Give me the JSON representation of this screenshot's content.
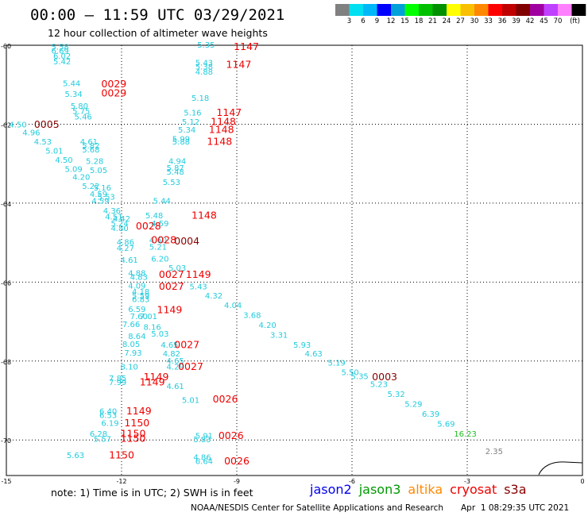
{
  "title": "00:00 – 11:59 UTC 03/29/2021",
  "subtitle": "12 hour collection of altimeter wave heights",
  "colorbar": {
    "colors": [
      "#808080",
      "#00e0f0",
      "#00b8f8",
      "#0000ff",
      "#00a0d8",
      "#00ff00",
      "#00c000",
      "#009000",
      "#ffff00",
      "#f8c000",
      "#ff8800",
      "#ff0000",
      "#c00000",
      "#800000",
      "#a000a0",
      "#c040ff",
      "#ff80ff",
      "#000000"
    ],
    "labels": [
      "3",
      "6",
      "9",
      "12",
      "15",
      "18",
      "21",
      "24",
      "27",
      "30",
      "33",
      "36",
      "39",
      "42",
      "45",
      "70",
      "(ft)"
    ]
  },
  "axes": {
    "y_ticks": [
      "-60",
      "-62",
      "-64",
      "-66",
      "-68",
      "-70"
    ],
    "x_ticks": [
      "-15",
      "-12",
      "-9",
      "-6",
      "-3",
      "0"
    ]
  },
  "colors": {
    "swh": "#22ccdd",
    "jason3_swh": "#22bb22",
    "gray_swh": "#808080",
    "time_cryosat": "#ee0000",
    "time_s3a": "#880000"
  },
  "swh_labels": [
    {
      "text": "5.58",
      "lon": -13.6,
      "lat": -60.05,
      "c": "swh"
    },
    {
      "text": "6.69",
      "lon": -13.6,
      "lat": -60.15,
      "c": "swh"
    },
    {
      "text": "6.02",
      "lon": -13.55,
      "lat": -60.28,
      "c": "swh"
    },
    {
      "text": "5.42",
      "lon": -13.55,
      "lat": -60.42,
      "c": "swh"
    },
    {
      "text": "5.44",
      "lon": -13.3,
      "lat": -60.98,
      "c": "swh"
    },
    {
      "text": "5.34",
      "lon": -13.25,
      "lat": -61.25,
      "c": "swh"
    },
    {
      "text": "5.80",
      "lon": -13.1,
      "lat": -61.55,
      "c": "swh"
    },
    {
      "text": "5.75",
      "lon": -13.05,
      "lat": -61.68,
      "c": "swh"
    },
    {
      "text": "5.46",
      "lon": -13.0,
      "lat": -61.82,
      "c": "swh"
    },
    {
      "text": "4.50",
      "lon": -14.7,
      "lat": -62.02,
      "c": "swh"
    },
    {
      "text": "4.96",
      "lon": -14.35,
      "lat": -62.22,
      "c": "swh"
    },
    {
      "text": "4.53",
      "lon": -14.05,
      "lat": -62.45,
      "c": "swh"
    },
    {
      "text": "4.61",
      "lon": -12.85,
      "lat": -62.45,
      "c": "swh"
    },
    {
      "text": "5.82",
      "lon": -12.8,
      "lat": -62.55,
      "c": "swh"
    },
    {
      "text": "5.68",
      "lon": -12.8,
      "lat": -62.65,
      "c": "swh"
    },
    {
      "text": "5.01",
      "lon": -13.75,
      "lat": -62.68,
      "c": "swh"
    },
    {
      "text": "4.50",
      "lon": -13.5,
      "lat": -62.92,
      "c": "swh"
    },
    {
      "text": "5.28",
      "lon": -12.7,
      "lat": -62.95,
      "c": "swh"
    },
    {
      "text": "5.09",
      "lon": -13.25,
      "lat": -63.15,
      "c": "swh"
    },
    {
      "text": "5.05",
      "lon": -12.6,
      "lat": -63.18,
      "c": "swh"
    },
    {
      "text": "4.20",
      "lon": -13.05,
      "lat": -63.35,
      "c": "swh"
    },
    {
      "text": "5.22",
      "lon": -12.8,
      "lat": -63.58,
      "c": "swh"
    },
    {
      "text": "5.16",
      "lon": -12.5,
      "lat": -63.62,
      "c": "swh"
    },
    {
      "text": "4.59",
      "lon": -12.6,
      "lat": -63.78,
      "c": "swh"
    },
    {
      "text": "5.53",
      "lon": -12.4,
      "lat": -63.85,
      "c": "swh"
    },
    {
      "text": "4.59",
      "lon": -12.55,
      "lat": -63.95,
      "c": "swh"
    },
    {
      "text": "4.36",
      "lon": -12.25,
      "lat": -64.2,
      "c": "swh"
    },
    {
      "text": "4.51",
      "lon": -12.2,
      "lat": -64.35,
      "c": "swh"
    },
    {
      "text": "4.42",
      "lon": -12.0,
      "lat": -64.4,
      "c": "swh"
    },
    {
      "text": "5.24",
      "lon": -12.05,
      "lat": -64.52,
      "c": "swh"
    },
    {
      "text": "4.80",
      "lon": -12.05,
      "lat": -64.65,
      "c": "swh"
    },
    {
      "text": "4.86",
      "lon": -11.9,
      "lat": -65.0,
      "c": "swh"
    },
    {
      "text": "4.27",
      "lon": -11.9,
      "lat": -65.15,
      "c": "swh"
    },
    {
      "text": "4.61",
      "lon": -11.8,
      "lat": -65.45,
      "c": "swh"
    },
    {
      "text": "4.88",
      "lon": -11.6,
      "lat": -65.78,
      "c": "swh"
    },
    {
      "text": "4.83",
      "lon": -11.55,
      "lat": -65.88,
      "c": "swh"
    },
    {
      "text": "4.09",
      "lon": -11.6,
      "lat": -66.1,
      "c": "swh"
    },
    {
      "text": "4.18",
      "lon": -11.5,
      "lat": -66.25,
      "c": "swh"
    },
    {
      "text": "5.59",
      "lon": -11.5,
      "lat": -66.35,
      "c": "swh"
    },
    {
      "text": "6.83",
      "lon": -11.5,
      "lat": -66.45,
      "c": "swh"
    },
    {
      "text": "6.59",
      "lon": -11.6,
      "lat": -66.7,
      "c": "swh"
    },
    {
      "text": "7.60",
      "lon": -11.55,
      "lat": -66.88,
      "c": "swh"
    },
    {
      "text": "7.01",
      "lon": -11.3,
      "lat": -66.88,
      "c": "swh"
    },
    {
      "text": "7.66",
      "lon": -11.75,
      "lat": -67.08,
      "c": "swh"
    },
    {
      "text": "8.16",
      "lon": -11.2,
      "lat": -67.15,
      "c": "swh"
    },
    {
      "text": "8.64",
      "lon": -11.6,
      "lat": -67.38,
      "c": "swh"
    },
    {
      "text": "5.03",
      "lon": -11.0,
      "lat": -67.32,
      "c": "swh"
    },
    {
      "text": "8.05",
      "lon": -11.75,
      "lat": -67.58,
      "c": "swh"
    },
    {
      "text": "4.65",
      "lon": -10.75,
      "lat": -67.6,
      "c": "swh"
    },
    {
      "text": "7.93",
      "lon": -11.7,
      "lat": -67.8,
      "c": "swh"
    },
    {
      "text": "4.82",
      "lon": -10.7,
      "lat": -67.82,
      "c": "swh"
    },
    {
      "text": "4.65",
      "lon": -10.6,
      "lat": -68.0,
      "c": "swh"
    },
    {
      "text": "8.10",
      "lon": -11.8,
      "lat": -68.15,
      "c": "swh"
    },
    {
      "text": "4.29",
      "lon": -10.6,
      "lat": -68.15,
      "c": "swh"
    },
    {
      "text": "7.85",
      "lon": -12.1,
      "lat": -68.45,
      "c": "swh"
    },
    {
      "text": "7.99",
      "lon": -12.1,
      "lat": -68.55,
      "c": "swh"
    },
    {
      "text": "4.61",
      "lon": -10.6,
      "lat": -68.65,
      "c": "swh"
    },
    {
      "text": "5.01",
      "lon": -10.2,
      "lat": -69.0,
      "c": "swh"
    },
    {
      "text": "6.40",
      "lon": -12.35,
      "lat": -69.28,
      "c": "swh"
    },
    {
      "text": "6.53",
      "lon": -12.35,
      "lat": -69.38,
      "c": "swh"
    },
    {
      "text": "6.19",
      "lon": -12.3,
      "lat": -69.58,
      "c": "swh"
    },
    {
      "text": "6.28",
      "lon": -12.6,
      "lat": -69.85,
      "c": "swh"
    },
    {
      "text": "5.57",
      "lon": -12.5,
      "lat": -69.98,
      "c": "swh"
    },
    {
      "text": "5.91",
      "lon": -9.85,
      "lat": -69.9,
      "c": "swh"
    },
    {
      "text": "5.83",
      "lon": -9.9,
      "lat": -70.0,
      "c": "swh"
    },
    {
      "text": "5.63",
      "lon": -13.2,
      "lat": -70.4,
      "c": "swh"
    },
    {
      "text": "4.86",
      "lon": -9.9,
      "lat": -70.45,
      "c": "swh"
    },
    {
      "text": "6.64",
      "lon": -9.85,
      "lat": -70.55,
      "c": "swh"
    },
    {
      "text": "5.35",
      "lon": -9.8,
      "lat": -60.0,
      "c": "swh"
    },
    {
      "text": "5.43",
      "lon": -9.85,
      "lat": -60.45,
      "c": "swh"
    },
    {
      "text": "5.38",
      "lon": -9.85,
      "lat": -60.55,
      "c": "swh"
    },
    {
      "text": "4.88",
      "lon": -9.85,
      "lat": -60.68,
      "c": "swh"
    },
    {
      "text": "5.18",
      "lon": -9.95,
      "lat": -61.35,
      "c": "swh"
    },
    {
      "text": "5.16",
      "lon": -10.15,
      "lat": -61.72,
      "c": "swh"
    },
    {
      "text": "5.12",
      "lon": -10.2,
      "lat": -61.95,
      "c": "swh"
    },
    {
      "text": "5.34",
      "lon": -10.3,
      "lat": -62.15,
      "c": "swh"
    },
    {
      "text": "5.99",
      "lon": -10.45,
      "lat": -62.38,
      "c": "swh"
    },
    {
      "text": "5.88",
      "lon": -10.45,
      "lat": -62.45,
      "c": "swh"
    },
    {
      "text": "4.94",
      "lon": -10.55,
      "lat": -62.95,
      "c": "swh"
    },
    {
      "text": "5.87",
      "lon": -10.6,
      "lat": -63.12,
      "c": "swh"
    },
    {
      "text": "5.48",
      "lon": -10.6,
      "lat": -63.22,
      "c": "swh"
    },
    {
      "text": "5.53",
      "lon": -10.7,
      "lat": -63.48,
      "c": "swh"
    },
    {
      "text": "5.44",
      "lon": -10.95,
      "lat": -63.95,
      "c": "swh"
    },
    {
      "text": "5.48",
      "lon": -11.15,
      "lat": -64.32,
      "c": "swh"
    },
    {
      "text": "4.59",
      "lon": -11.0,
      "lat": -64.52,
      "c": "swh"
    },
    {
      "text": "4.60",
      "lon": -11.05,
      "lat": -64.95,
      "c": "swh"
    },
    {
      "text": "5.21",
      "lon": -11.05,
      "lat": -65.12,
      "c": "swh"
    },
    {
      "text": "6.20",
      "lon": -11.0,
      "lat": -65.42,
      "c": "swh"
    },
    {
      "text": "5.03",
      "lon": -10.55,
      "lat": -65.65,
      "c": "swh"
    },
    {
      "text": "5.43",
      "lon": -10.0,
      "lat": -66.12,
      "c": "swh"
    },
    {
      "text": "4.32",
      "lon": -9.6,
      "lat": -66.35,
      "c": "swh"
    },
    {
      "text": "4.04",
      "lon": -9.1,
      "lat": -66.6,
      "c": "swh"
    },
    {
      "text": "3.68",
      "lon": -8.6,
      "lat": -66.85,
      "c": "swh"
    },
    {
      "text": "4.20",
      "lon": -8.2,
      "lat": -67.1,
      "c": "swh"
    },
    {
      "text": "3.31",
      "lon": -7.9,
      "lat": -67.35,
      "c": "swh"
    },
    {
      "text": "5.93",
      "lon": -7.3,
      "lat": -67.6,
      "c": "swh"
    },
    {
      "text": "4.63",
      "lon": -7.0,
      "lat": -67.82,
      "c": "swh"
    },
    {
      "text": "5.19",
      "lon": -6.4,
      "lat": -68.05,
      "c": "swh"
    },
    {
      "text": "5.50",
      "lon": -6.05,
      "lat": -68.3,
      "c": "swh"
    },
    {
      "text": "5.35",
      "lon": -5.8,
      "lat": -68.4,
      "c": "swh"
    },
    {
      "text": "5.23",
      "lon": -5.3,
      "lat": -68.6,
      "c": "swh"
    },
    {
      "text": "5.32",
      "lon": -4.85,
      "lat": -68.85,
      "c": "swh"
    },
    {
      "text": "5.29",
      "lon": -4.4,
      "lat": -69.1,
      "c": "swh"
    },
    {
      "text": "6.39",
      "lon": -3.95,
      "lat": -69.35,
      "c": "swh"
    },
    {
      "text": "5.69",
      "lon": -3.55,
      "lat": -69.6,
      "c": "swh"
    },
    {
      "text": "16.23",
      "lon": -3.05,
      "lat": -69.85,
      "c": "jason3_swh"
    },
    {
      "text": "2.35",
      "lon": -2.3,
      "lat": -70.3,
      "c": "gray_swh"
    }
  ],
  "time_labels": [
    {
      "text": "1147",
      "lon": -8.75,
      "lat": -60.05,
      "c": "time_cryosat"
    },
    {
      "text": "1147",
      "lon": -8.95,
      "lat": -60.5,
      "c": "time_cryosat"
    },
    {
      "text": "0029",
      "lon": -12.2,
      "lat": -61.0,
      "c": "time_cryosat"
    },
    {
      "text": "0029",
      "lon": -12.2,
      "lat": -61.23,
      "c": "time_cryosat"
    },
    {
      "text": "1147",
      "lon": -9.2,
      "lat": -61.72,
      "c": "time_cryosat"
    },
    {
      "text": "1148",
      "lon": -9.35,
      "lat": -61.95,
      "c": "time_cryosat"
    },
    {
      "text": "1148",
      "lon": -9.4,
      "lat": -62.15,
      "c": "time_cryosat"
    },
    {
      "text": "1148",
      "lon": -9.45,
      "lat": -62.45,
      "c": "time_cryosat"
    },
    {
      "text": "0005",
      "lon": -13.95,
      "lat": -62.02,
      "c": "time_s3a"
    },
    {
      "text": "1148",
      "lon": -9.85,
      "lat": -64.32,
      "c": "time_cryosat"
    },
    {
      "text": "0028",
      "lon": -11.3,
      "lat": -64.6,
      "c": "time_cryosat"
    },
    {
      "text": "0028",
      "lon": -10.9,
      "lat": -64.95,
      "c": "time_cryosat"
    },
    {
      "text": "0004",
      "lon": -10.3,
      "lat": -64.98,
      "c": "time_s3a"
    },
    {
      "text": "0027",
      "lon": -10.7,
      "lat": -65.82,
      "c": "time_cryosat"
    },
    {
      "text": "1149",
      "lon": -10.0,
      "lat": -65.82,
      "c": "time_cryosat"
    },
    {
      "text": "0027",
      "lon": -10.7,
      "lat": -66.12,
      "c": "time_cryosat"
    },
    {
      "text": "1149",
      "lon": -10.75,
      "lat": -66.72,
      "c": "time_cryosat"
    },
    {
      "text": "0027",
      "lon": -10.3,
      "lat": -67.6,
      "c": "time_cryosat"
    },
    {
      "text": "0027",
      "lon": -10.2,
      "lat": -68.15,
      "c": "time_cryosat"
    },
    {
      "text": "1149",
      "lon": -11.1,
      "lat": -68.42,
      "c": "time_cryosat"
    },
    {
      "text": "1149",
      "lon": -11.2,
      "lat": -68.55,
      "c": "time_cryosat"
    },
    {
      "text": "0003",
      "lon": -5.15,
      "lat": -68.42,
      "c": "time_s3a"
    },
    {
      "text": "0026",
      "lon": -9.3,
      "lat": -68.98,
      "c": "time_cryosat"
    },
    {
      "text": "1149",
      "lon": -11.55,
      "lat": -69.28,
      "c": "time_cryosat"
    },
    {
      "text": "1150",
      "lon": -11.6,
      "lat": -69.58,
      "c": "time_cryosat"
    },
    {
      "text": "1150",
      "lon": -11.7,
      "lat": -69.85,
      "c": "time_cryosat"
    },
    {
      "text": "1150",
      "lon": -11.7,
      "lat": -69.97,
      "c": "time_cryosat"
    },
    {
      "text": "0026",
      "lon": -9.15,
      "lat": -69.9,
      "c": "time_cryosat"
    },
    {
      "text": "1150",
      "lon": -12.0,
      "lat": -70.4,
      "c": "time_cryosat"
    },
    {
      "text": "0026",
      "lon": -9.0,
      "lat": -70.55,
      "c": "time_cryosat"
    }
  ],
  "note": "note:  1) Time is in UTC;  2) SWH is in feet",
  "satellites": [
    {
      "name": "jason2",
      "color": "#0000ee"
    },
    {
      "name": "jason3",
      "color": "#009900"
    },
    {
      "name": "altika",
      "color": "#ff8800"
    },
    {
      "name": "cryosat",
      "color": "#ee0000"
    },
    {
      "name": "s3a",
      "color": "#880000"
    }
  ],
  "credit": "NOAA/NESDIS Center for Satellite Applications and Research",
  "credit_time": "Apr  1 08:29:35 UTC 2021"
}
